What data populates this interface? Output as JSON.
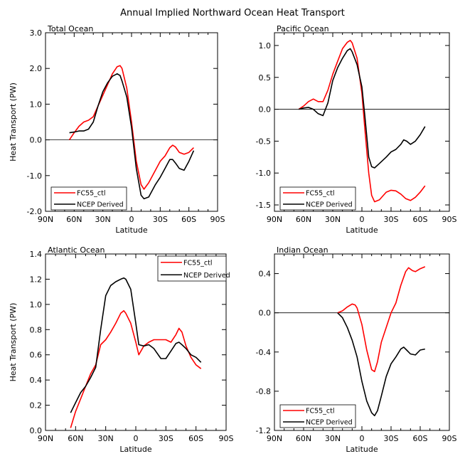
{
  "figure": {
    "title": "Annual Implied Northward Ocean Heat Transport"
  },
  "chart_data": [
    {
      "type": "line",
      "title": "Total Ocean",
      "xlabel": "Latitude",
      "ylabel": "Heat Transport (PW)",
      "x_ticks": [
        "90N",
        "60N",
        "30N",
        "0",
        "30S",
        "60S",
        "90S"
      ],
      "y_ticks": [
        "3.0",
        "2.0",
        "1.0",
        "0.0",
        "-1.0",
        "-2.0"
      ],
      "xlim": [
        90,
        -90
      ],
      "ylim": [
        -2.0,
        3.0
      ],
      "zero_line": true,
      "legend": "lower-left",
      "series": [
        {
          "name": "FC55_ctl",
          "color": "#ff0000",
          "x": [
            65,
            60,
            55,
            50,
            45,
            40,
            35,
            30,
            25,
            20,
            15,
            12,
            10,
            5,
            0,
            -5,
            -10,
            -13,
            -18,
            -25,
            -30,
            -35,
            -40,
            -43,
            -46,
            -50,
            -55,
            -60,
            -65
          ],
          "y": [
            0.0,
            0.2,
            0.38,
            0.5,
            0.55,
            0.65,
            0.95,
            1.25,
            1.55,
            1.85,
            2.05,
            2.08,
            2.0,
            1.45,
            0.5,
            -0.6,
            -1.25,
            -1.38,
            -1.2,
            -0.85,
            -0.6,
            -0.45,
            -0.22,
            -0.15,
            -0.2,
            -0.35,
            -0.4,
            -0.35,
            -0.22
          ]
        },
        {
          "name": "NCEP Derived",
          "color": "#000000",
          "x": [
            65,
            60,
            55,
            50,
            45,
            40,
            35,
            30,
            25,
            20,
            15,
            12,
            10,
            5,
            0,
            -5,
            -10,
            -13,
            -18,
            -25,
            -30,
            -35,
            -40,
            -43,
            -46,
            -50,
            -55,
            -60,
            -65
          ],
          "y": [
            0.2,
            0.22,
            0.25,
            0.25,
            0.3,
            0.5,
            0.95,
            1.35,
            1.6,
            1.78,
            1.85,
            1.8,
            1.65,
            1.2,
            0.35,
            -0.8,
            -1.55,
            -1.65,
            -1.6,
            -1.25,
            -1.05,
            -0.8,
            -0.55,
            -0.55,
            -0.65,
            -0.8,
            -0.85,
            -0.6,
            -0.3
          ]
        }
      ]
    },
    {
      "type": "line",
      "title": "Pacific Ocean",
      "xlabel": "Latitude",
      "ylabel": "",
      "x_ticks": [
        "90N",
        "60N",
        "30N",
        "0",
        "30S",
        "60S",
        "90S"
      ],
      "y_ticks": [
        "1.0",
        "0.5",
        "0.0",
        "-0.5",
        "-1.0",
        "-1.5"
      ],
      "xlim": [
        90,
        -90
      ],
      "ylim": [
        -1.6,
        1.2
      ],
      "zero_line": true,
      "legend": "lower-left",
      "series": [
        {
          "name": "FC55_ctl",
          "color": "#ff0000",
          "x": [
            65,
            60,
            55,
            50,
            45,
            40,
            35,
            30,
            25,
            20,
            15,
            12,
            10,
            5,
            0,
            -3,
            -7,
            -10,
            -13,
            -18,
            -25,
            -30,
            -35,
            -40,
            -45,
            -50,
            -55,
            -60,
            -65
          ],
          "y": [
            0.0,
            0.05,
            0.12,
            0.16,
            0.12,
            0.12,
            0.3,
            0.55,
            0.75,
            0.95,
            1.05,
            1.08,
            1.04,
            0.8,
            0.25,
            -0.3,
            -1.0,
            -1.35,
            -1.45,
            -1.42,
            -1.3,
            -1.27,
            -1.28,
            -1.33,
            -1.4,
            -1.43,
            -1.38,
            -1.3,
            -1.2
          ]
        },
        {
          "name": "NCEP Derived",
          "color": "#000000",
          "x": [
            65,
            60,
            55,
            50,
            45,
            40,
            35,
            30,
            25,
            20,
            15,
            12,
            10,
            5,
            0,
            -3,
            -7,
            -10,
            -13,
            -18,
            -25,
            -30,
            -35,
            -40,
            -43,
            -46,
            -50,
            -55,
            -60,
            -65
          ],
          "y": [
            0.0,
            0.02,
            0.03,
            0.0,
            -0.07,
            -0.1,
            0.1,
            0.45,
            0.65,
            0.8,
            0.92,
            0.95,
            0.9,
            0.7,
            0.35,
            -0.1,
            -0.75,
            -0.9,
            -0.92,
            -0.85,
            -0.75,
            -0.67,
            -0.63,
            -0.55,
            -0.48,
            -0.5,
            -0.55,
            -0.5,
            -0.4,
            -0.27
          ]
        }
      ]
    },
    {
      "type": "line",
      "title": "Atlantic Ocean",
      "xlabel": "Latitude",
      "ylabel": "Heat Transport (PW)",
      "x_ticks": [
        "90N",
        "60N",
        "30N",
        "0",
        "30S",
        "60S",
        "90S"
      ],
      "y_ticks": [
        "1.4",
        "1.2",
        "1.0",
        "0.8",
        "0.6",
        "0.4",
        "0.2",
        "0.0"
      ],
      "xlim": [
        90,
        -90
      ],
      "ylim": [
        0.0,
        1.4
      ],
      "zero_line": false,
      "legend": "top-right",
      "series": [
        {
          "name": "FC55_ctl",
          "color": "#ff0000",
          "x": [
            65,
            60,
            55,
            50,
            45,
            40,
            35,
            30,
            25,
            20,
            15,
            12,
            10,
            5,
            0,
            -3,
            -8,
            -13,
            -18,
            -25,
            -30,
            -35,
            -40,
            -43,
            -46,
            -50,
            -55,
            -60,
            -65
          ],
          "y": [
            0.02,
            0.15,
            0.25,
            0.35,
            0.45,
            0.52,
            0.68,
            0.72,
            0.78,
            0.85,
            0.93,
            0.95,
            0.93,
            0.85,
            0.7,
            0.6,
            0.67,
            0.7,
            0.72,
            0.72,
            0.72,
            0.7,
            0.76,
            0.81,
            0.78,
            0.67,
            0.58,
            0.52,
            0.49
          ]
        },
        {
          "name": "NCEP Derived",
          "color": "#000000",
          "x": [
            65,
            60,
            55,
            50,
            45,
            40,
            35,
            30,
            25,
            20,
            15,
            12,
            10,
            5,
            0,
            -3,
            -8,
            -13,
            -18,
            -25,
            -30,
            -35,
            -40,
            -43,
            -46,
            -50,
            -55,
            -60,
            -65
          ],
          "y": [
            0.14,
            0.22,
            0.3,
            0.35,
            0.42,
            0.5,
            0.8,
            1.07,
            1.15,
            1.18,
            1.2,
            1.21,
            1.2,
            1.12,
            0.85,
            0.68,
            0.67,
            0.68,
            0.65,
            0.57,
            0.57,
            0.63,
            0.69,
            0.7,
            0.68,
            0.65,
            0.6,
            0.58,
            0.54
          ]
        }
      ]
    },
    {
      "type": "line",
      "title": "Indian Ocean",
      "xlabel": "Latitude",
      "ylabel": "",
      "x_ticks": [
        "90N",
        "60N",
        "30N",
        "0",
        "30S",
        "60S",
        "90S"
      ],
      "y_ticks": [
        "0.4",
        "0.0",
        "-0.4",
        "-0.8",
        "-1.2"
      ],
      "xlim": [
        90,
        -90
      ],
      "ylim": [
        -1.2,
        0.6
      ],
      "zero_line": true,
      "legend": "lower-left",
      "series": [
        {
          "name": "FC55_ctl",
          "color": "#ff0000",
          "x": [
            25,
            20,
            15,
            10,
            7,
            5,
            0,
            -5,
            -10,
            -13,
            -16,
            -20,
            -25,
            -30,
            -35,
            -40,
            -45,
            -48,
            -52,
            -55,
            -60,
            -65
          ],
          "y": [
            0.0,
            0.02,
            0.06,
            0.09,
            0.08,
            0.05,
            -0.12,
            -0.38,
            -0.58,
            -0.6,
            -0.5,
            -0.3,
            -0.15,
            0.0,
            0.1,
            0.28,
            0.42,
            0.46,
            0.43,
            0.42,
            0.45,
            0.47
          ]
        },
        {
          "name": "NCEP Derived",
          "color": "#000000",
          "x": [
            25,
            20,
            15,
            10,
            5,
            0,
            -5,
            -10,
            -13,
            -16,
            -20,
            -25,
            -30,
            -35,
            -40,
            -43,
            -46,
            -50,
            -55,
            -60,
            -65
          ],
          "y": [
            0.0,
            -0.05,
            -0.15,
            -0.28,
            -0.45,
            -0.7,
            -0.9,
            -1.02,
            -1.05,
            -1.0,
            -0.85,
            -0.65,
            -0.52,
            -0.45,
            -0.37,
            -0.35,
            -0.38,
            -0.42,
            -0.43,
            -0.38,
            -0.37
          ]
        }
      ]
    }
  ]
}
